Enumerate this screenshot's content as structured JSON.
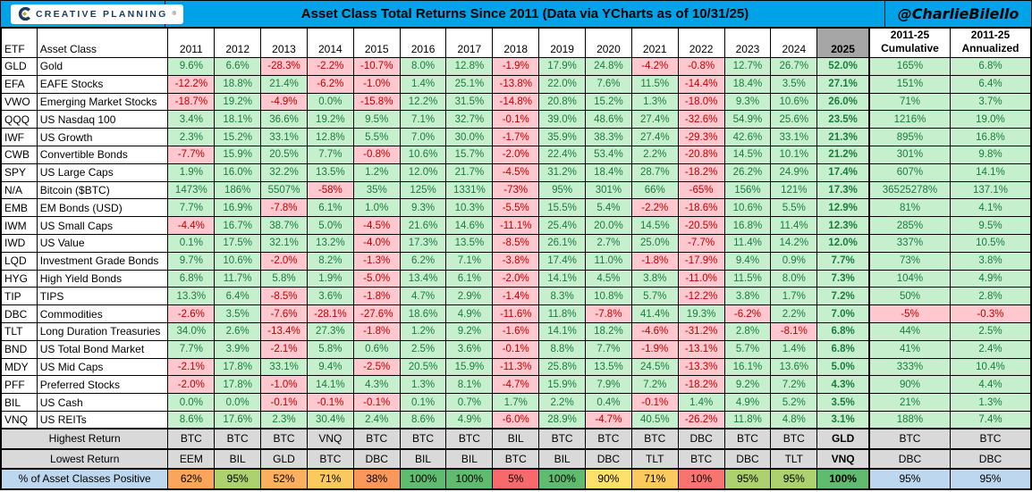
{
  "header": {
    "logo_text": "CREATIVE PLANNING",
    "logo_reg": "®",
    "title": "Asset Class Total Returns Since 2011 (Data via YCharts as of 10/31/25)",
    "handle": "@CharlieBilello"
  },
  "colors": {
    "titlebar_blue": "#00A2E8",
    "positive_bg": "#C6EFCE",
    "positive_text": "#1E7B3E",
    "negative_bg": "#FFC7CE",
    "negative_text": "#C00000",
    "header_2025_bg": "#A6A6A6",
    "footer_gray": "#D9D9D9",
    "footer_blue": "#BDD7EE",
    "logo_navy": "#1C3D5E",
    "logo_gold": "#C9A227"
  },
  "chart_data": {
    "type": "table",
    "title": "Asset Class Total Returns Since 2011 (Data via YCharts as of 10/31/25)"
  },
  "table": {
    "col_headers": {
      "etf": "ETF",
      "asset_class": "Asset Class",
      "years": [
        "2011",
        "2012",
        "2013",
        "2014",
        "2015",
        "2016",
        "2017",
        "2018",
        "2019",
        "2020",
        "2021",
        "2022",
        "2023",
        "2024"
      ],
      "y2025": "2025",
      "cumulative": "2011-25\nCumulative",
      "annualized": "2011-25\nAnnualized"
    },
    "rows": [
      {
        "etf": "GLD",
        "asset_class": "Gold",
        "values": [
          "9.6%",
          "6.6%",
          "-28.3%",
          "-2.2%",
          "-10.7%",
          "8.0%",
          "12.8%",
          "-1.9%",
          "17.9%",
          "24.8%",
          "-4.2%",
          "-0.8%",
          "12.7%",
          "26.7%",
          "52.0%",
          "165%",
          "6.8%"
        ]
      },
      {
        "etf": "EFA",
        "asset_class": "EAFE Stocks",
        "values": [
          "-12.2%",
          "18.8%",
          "21.4%",
          "-6.2%",
          "-1.0%",
          "1.4%",
          "25.1%",
          "-13.8%",
          "22.0%",
          "7.6%",
          "11.5%",
          "-14.4%",
          "18.4%",
          "3.5%",
          "27.1%",
          "151%",
          "6.4%"
        ]
      },
      {
        "etf": "VWO",
        "asset_class": "Emerging Market Stocks",
        "values": [
          "-18.7%",
          "19.2%",
          "-4.9%",
          "0.0%",
          "-15.8%",
          "12.2%",
          "31.5%",
          "-14.8%",
          "20.8%",
          "15.2%",
          "1.3%",
          "-18.0%",
          "9.3%",
          "10.6%",
          "26.0%",
          "71%",
          "3.7%"
        ]
      },
      {
        "etf": "QQQ",
        "asset_class": "US Nasdaq 100",
        "values": [
          "3.4%",
          "18.1%",
          "36.6%",
          "19.2%",
          "9.5%",
          "7.1%",
          "32.7%",
          "-0.1%",
          "39.0%",
          "48.6%",
          "27.4%",
          "-32.6%",
          "54.9%",
          "25.6%",
          "23.5%",
          "1216%",
          "19.0%"
        ]
      },
      {
        "etf": "IWF",
        "asset_class": "US Growth",
        "values": [
          "2.3%",
          "15.2%",
          "33.1%",
          "12.8%",
          "5.5%",
          "7.0%",
          "30.0%",
          "-1.7%",
          "35.9%",
          "38.3%",
          "27.4%",
          "-29.3%",
          "42.6%",
          "33.1%",
          "21.3%",
          "895%",
          "16.8%"
        ]
      },
      {
        "etf": "CWB",
        "asset_class": "Convertible Bonds",
        "values": [
          "-7.7%",
          "15.9%",
          "20.5%",
          "7.7%",
          "-0.8%",
          "10.6%",
          "15.7%",
          "-2.0%",
          "22.4%",
          "53.4%",
          "2.2%",
          "-20.8%",
          "14.5%",
          "10.1%",
          "21.2%",
          "301%",
          "9.8%"
        ]
      },
      {
        "etf": "SPY",
        "asset_class": "US Large Caps",
        "values": [
          "1.9%",
          "16.0%",
          "32.2%",
          "13.5%",
          "1.2%",
          "12.0%",
          "21.7%",
          "-4.5%",
          "31.2%",
          "18.4%",
          "28.7%",
          "-18.2%",
          "26.2%",
          "24.9%",
          "17.4%",
          "607%",
          "14.1%"
        ]
      },
      {
        "etf": "N/A",
        "asset_class": "Bitcoin ($BTC)",
        "values": [
          "1473%",
          "186%",
          "5507%",
          "-58%",
          "35%",
          "125%",
          "1331%",
          "-73%",
          "95%",
          "301%",
          "66%",
          "-65%",
          "156%",
          "121%",
          "17.3%",
          "36525278%",
          "137.1%"
        ]
      },
      {
        "etf": "EMB",
        "asset_class": "EM Bonds (USD)",
        "values": [
          "7.7%",
          "16.9%",
          "-7.8%",
          "6.1%",
          "1.0%",
          "9.3%",
          "10.3%",
          "-5.5%",
          "15.5%",
          "5.4%",
          "-2.2%",
          "-18.6%",
          "10.6%",
          "5.5%",
          "12.9%",
          "81%",
          "4.1%"
        ]
      },
      {
        "etf": "IWM",
        "asset_class": "US Small Caps",
        "values": [
          "-4.4%",
          "16.7%",
          "38.7%",
          "5.0%",
          "-4.5%",
          "21.6%",
          "14.6%",
          "-11.1%",
          "25.4%",
          "20.0%",
          "14.5%",
          "-20.5%",
          "16.8%",
          "11.4%",
          "12.3%",
          "285%",
          "9.5%"
        ]
      },
      {
        "etf": "IWD",
        "asset_class": "US Value",
        "values": [
          "0.1%",
          "17.5%",
          "32.1%",
          "13.2%",
          "-4.0%",
          "17.3%",
          "13.5%",
          "-8.5%",
          "26.1%",
          "2.7%",
          "25.0%",
          "-7.7%",
          "11.4%",
          "14.2%",
          "12.0%",
          "337%",
          "10.5%"
        ]
      },
      {
        "etf": "LQD",
        "asset_class": "Investment Grade Bonds",
        "values": [
          "9.7%",
          "10.6%",
          "-2.0%",
          "8.2%",
          "-1.3%",
          "6.2%",
          "7.1%",
          "-3.8%",
          "17.4%",
          "11.0%",
          "-1.8%",
          "-17.9%",
          "9.4%",
          "0.9%",
          "7.7%",
          "73%",
          "3.8%"
        ]
      },
      {
        "etf": "HYG",
        "asset_class": "High Yield Bonds",
        "values": [
          "6.8%",
          "11.7%",
          "5.8%",
          "1.9%",
          "-5.0%",
          "13.4%",
          "6.1%",
          "-2.0%",
          "14.1%",
          "4.5%",
          "3.8%",
          "-11.0%",
          "11.5%",
          "8.0%",
          "7.3%",
          "104%",
          "4.9%"
        ]
      },
      {
        "etf": "TIP",
        "asset_class": "TIPS",
        "values": [
          "13.3%",
          "6.4%",
          "-8.5%",
          "3.6%",
          "-1.8%",
          "4.7%",
          "2.9%",
          "-1.4%",
          "8.3%",
          "10.8%",
          "5.7%",
          "-12.2%",
          "3.8%",
          "1.7%",
          "7.2%",
          "50%",
          "2.8%"
        ]
      },
      {
        "etf": "DBC",
        "asset_class": "Commodities",
        "values": [
          "-2.6%",
          "3.5%",
          "-7.6%",
          "-28.1%",
          "-27.6%",
          "18.6%",
          "4.9%",
          "-11.6%",
          "11.8%",
          "-7.8%",
          "41.4%",
          "19.3%",
          "-6.2%",
          "2.2%",
          "7.0%",
          "-5%",
          "-0.3%"
        ]
      },
      {
        "etf": "TLT",
        "asset_class": "Long Duration Treasuries",
        "values": [
          "34.0%",
          "2.6%",
          "-13.4%",
          "27.3%",
          "-1.8%",
          "1.2%",
          "9.2%",
          "-1.6%",
          "14.1%",
          "18.2%",
          "-4.6%",
          "-31.2%",
          "2.8%",
          "-8.1%",
          "6.8%",
          "44%",
          "2.5%"
        ]
      },
      {
        "etf": "BND",
        "asset_class": "US Total Bond Market",
        "values": [
          "7.7%",
          "3.9%",
          "-2.1%",
          "5.8%",
          "0.6%",
          "2.5%",
          "3.6%",
          "-0.1%",
          "8.8%",
          "7.7%",
          "-1.9%",
          "-13.1%",
          "5.7%",
          "1.4%",
          "6.8%",
          "41%",
          "2.4%"
        ]
      },
      {
        "etf": "MDY",
        "asset_class": "US Mid Caps",
        "values": [
          "-2.1%",
          "17.8%",
          "33.1%",
          "9.4%",
          "-2.5%",
          "20.5%",
          "15.9%",
          "-11.3%",
          "25.8%",
          "13.5%",
          "24.5%",
          "-13.3%",
          "16.1%",
          "13.6%",
          "5.0%",
          "333%",
          "10.4%"
        ]
      },
      {
        "etf": "PFF",
        "asset_class": "Preferred Stocks",
        "values": [
          "-2.0%",
          "17.8%",
          "-1.0%",
          "14.1%",
          "4.3%",
          "1.3%",
          "8.1%",
          "-4.7%",
          "15.9%",
          "7.9%",
          "7.2%",
          "-18.2%",
          "9.2%",
          "7.2%",
          "4.3%",
          "90%",
          "4.4%"
        ]
      },
      {
        "etf": "BIL",
        "asset_class": "US Cash",
        "values": [
          "0.0%",
          "0.0%",
          "-0.1%",
          "-0.1%",
          "-0.1%",
          "0.1%",
          "0.7%",
          "1.7%",
          "2.2%",
          "0.4%",
          "-0.1%",
          "1.4%",
          "4.9%",
          "5.2%",
          "3.5%",
          "21%",
          "1.3%"
        ]
      },
      {
        "etf": "VNQ",
        "asset_class": "US REITs",
        "values": [
          "8.6%",
          "17.6%",
          "2.3%",
          "30.4%",
          "2.4%",
          "8.6%",
          "4.9%",
          "-6.0%",
          "28.9%",
          "-4.7%",
          "40.5%",
          "-26.2%",
          "11.8%",
          "4.8%",
          "3.1%",
          "188%",
          "7.4%"
        ]
      }
    ],
    "footer": {
      "highest_label": "Highest Return",
      "highest": [
        "BTC",
        "BTC",
        "BTC",
        "VNQ",
        "BTC",
        "BTC",
        "BTC",
        "BIL",
        "BTC",
        "BTC",
        "BTC",
        "DBC",
        "BTC",
        "BTC",
        "GLD",
        "BTC",
        "BTC"
      ],
      "lowest_label": "Lowest Return",
      "lowest": [
        "EEM",
        "BIL",
        "GLD",
        "BTC",
        "DBC",
        "BIL",
        "BIL",
        "BTC",
        "BIL",
        "DBC",
        "TLT",
        "BTC",
        "DBC",
        "TLT",
        "VNQ",
        "DBC",
        "DBC"
      ],
      "pct_label": "% of Asset Classes Positive",
      "pct_positive": [
        {
          "value": "62%",
          "bg": "#FAA55C"
        },
        {
          "value": "95%",
          "bg": "#ACD16E"
        },
        {
          "value": "52%",
          "bg": "#FBB05F"
        },
        {
          "value": "71%",
          "bg": "#FCC95F"
        },
        {
          "value": "38%",
          "bg": "#F9985A"
        },
        {
          "value": "100%",
          "bg": "#5FBB6E"
        },
        {
          "value": "100%",
          "bg": "#5FBB6E"
        },
        {
          "value": "5%",
          "bg": "#F8696B"
        },
        {
          "value": "100%",
          "bg": "#5FBB6E"
        },
        {
          "value": "90%",
          "bg": "#FEE16A"
        },
        {
          "value": "71%",
          "bg": "#FCC95F"
        },
        {
          "value": "10%",
          "bg": "#F8756F"
        },
        {
          "value": "95%",
          "bg": "#ACD16E"
        },
        {
          "value": "95%",
          "bg": "#ACD16E"
        },
        {
          "value": "100%",
          "bg": "#5FBB6E"
        },
        {
          "value": "95%",
          "bg": "#BDD7EE"
        },
        {
          "value": "95%",
          "bg": "#BDD7EE"
        }
      ]
    }
  }
}
